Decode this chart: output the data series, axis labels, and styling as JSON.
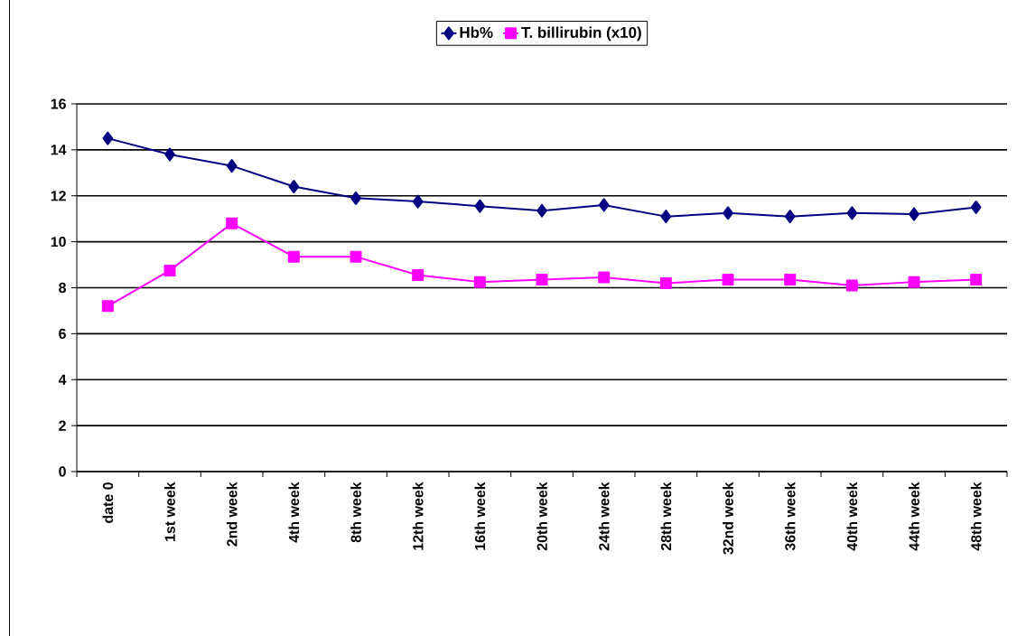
{
  "chart_data": {
    "type": "line",
    "categories": [
      "date 0",
      "1st week",
      "2nd week",
      "4th week",
      "8th week",
      "12th week",
      "16th week",
      "20th week",
      "24th week",
      "28th week",
      "32nd week",
      "36th week",
      "40th week",
      "44th week",
      "48th week"
    ],
    "series": [
      {
        "name": "Hb%",
        "color": "#000080",
        "marker": "diamond",
        "values": [
          14.5,
          13.8,
          13.3,
          12.4,
          11.9,
          11.75,
          11.55,
          11.35,
          11.6,
          11.1,
          11.25,
          11.1,
          11.25,
          11.2,
          11.5
        ]
      },
      {
        "name": "T. billirubin (x10)",
        "color": "#ff00ff",
        "marker": "square",
        "values": [
          7.2,
          8.75,
          10.8,
          9.35,
          9.35,
          8.55,
          8.25,
          8.35,
          8.45,
          8.2,
          8.35,
          8.35,
          8.1,
          8.25,
          8.35
        ]
      }
    ],
    "ylim": [
      0,
      16
    ],
    "yticks": [
      0,
      2,
      4,
      6,
      8,
      10,
      12,
      14,
      16
    ],
    "grid": "y",
    "legend": "top"
  }
}
